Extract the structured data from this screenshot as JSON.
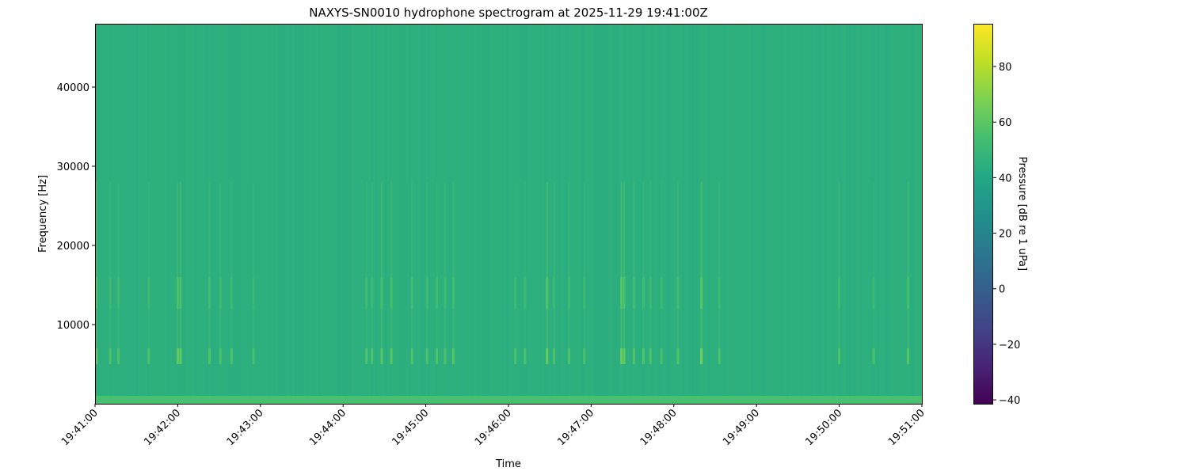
{
  "chart_data": {
    "type": "heatmap",
    "title": "NAXYS-SN0010 hydrophone spectrogram at 2025-11-29 19:41:00Z",
    "xlabel": "Time",
    "ylabel": "Frequency [Hz]",
    "x_ticks": [
      "19:41:00",
      "19:42:00",
      "19:43:00",
      "19:44:00",
      "19:45:00",
      "19:46:00",
      "19:47:00",
      "19:48:00",
      "19:49:00",
      "19:50:00",
      "19:51:00"
    ],
    "xlim_seconds_from_start": [
      0,
      600
    ],
    "y_ticks": [
      10000,
      20000,
      30000,
      40000
    ],
    "ylim": [
      0,
      48000
    ],
    "colormap": "viridis",
    "colorbar": {
      "label": "Pressure [dB re 1 uPa]",
      "ticks": [
        -40,
        -20,
        0,
        20,
        40,
        60,
        80
      ],
      "range": [
        -41.4,
        95.4
      ]
    },
    "background_level_db": 45,
    "low_frequency_band": {
      "freq_range_hz": [
        0,
        1000
      ],
      "level_db": 55
    },
    "transient_events": [
      {
        "time": "19:41:01",
        "peak_db": 62
      },
      {
        "time": "19:41:11",
        "peak_db": 57
      },
      {
        "time": "19:41:17",
        "peak_db": 57
      },
      {
        "time": "19:41:39",
        "peak_db": 57
      },
      {
        "time": "19:42:00",
        "peak_db": 62
      },
      {
        "time": "19:42:02",
        "peak_db": 62
      },
      {
        "time": "19:42:23",
        "peak_db": 58
      },
      {
        "time": "19:42:31",
        "peak_db": 56
      },
      {
        "time": "19:42:39",
        "peak_db": 57
      },
      {
        "time": "19:42:55",
        "peak_db": 55
      },
      {
        "time": "19:44:17",
        "peak_db": 58
      },
      {
        "time": "19:44:21",
        "peak_db": 57
      },
      {
        "time": "19:44:28",
        "peak_db": 60
      },
      {
        "time": "19:44:35",
        "peak_db": 60
      },
      {
        "time": "19:44:50",
        "peak_db": 58
      },
      {
        "time": "19:45:01",
        "peak_db": 57
      },
      {
        "time": "19:45:08",
        "peak_db": 57
      },
      {
        "time": "19:45:14",
        "peak_db": 57
      },
      {
        "time": "19:45:20",
        "peak_db": 59
      },
      {
        "time": "19:46:05",
        "peak_db": 56
      },
      {
        "time": "19:46:12",
        "peak_db": 56
      },
      {
        "time": "19:46:28",
        "peak_db": 64
      },
      {
        "time": "19:46:33",
        "peak_db": 57
      },
      {
        "time": "19:46:44",
        "peak_db": 57
      },
      {
        "time": "19:46:55",
        "peak_db": 56
      },
      {
        "time": "19:47:22",
        "peak_db": 65
      },
      {
        "time": "19:47:24",
        "peak_db": 62
      },
      {
        "time": "19:47:31",
        "peak_db": 58
      },
      {
        "time": "19:47:38",
        "peak_db": 58
      },
      {
        "time": "19:47:43",
        "peak_db": 57
      },
      {
        "time": "19:47:51",
        "peak_db": 56
      },
      {
        "time": "19:48:03",
        "peak_db": 58
      },
      {
        "time": "19:48:20",
        "peak_db": 66
      },
      {
        "time": "19:48:33",
        "peak_db": 57
      },
      {
        "time": "19:50:00",
        "peak_db": 58
      },
      {
        "time": "19:50:25",
        "peak_db": 56
      },
      {
        "time": "19:50:50",
        "peak_db": 60
      }
    ],
    "event_band_hz": [
      5000,
      7000
    ]
  }
}
